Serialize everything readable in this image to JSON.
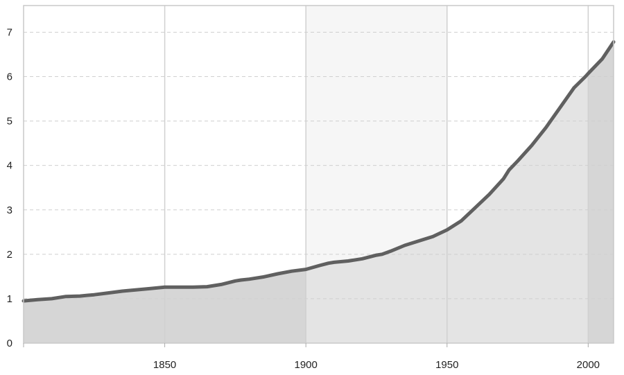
{
  "chart_data": {
    "type": "area",
    "title": "",
    "xlabel": "",
    "ylabel": "",
    "xlim": [
      1800,
      2009
    ],
    "ylim": [
      0,
      7.6
    ],
    "grid": true,
    "x_ticks": [
      1850,
      1900,
      1950,
      2000
    ],
    "x_tick_labels": [
      "1850",
      "1900",
      "1950",
      "2000"
    ],
    "y_ticks": [
      0,
      1,
      2,
      3,
      4,
      5,
      6,
      7
    ],
    "y_tick_labels": [
      "0",
      "1",
      "2",
      "3",
      "4",
      "5",
      "6",
      "7"
    ],
    "shaded_periods": [
      {
        "start": 1800,
        "end": 1900,
        "fill": "#d6d6d6",
        "background": "#ffffff"
      },
      {
        "start": 1900,
        "end": 1950,
        "fill": "#e4e4e4",
        "background": "#f6f6f6"
      },
      {
        "start": 1950,
        "end": 2000,
        "fill": "#e4e4e4",
        "background": "#ffffff"
      },
      {
        "start": 2000,
        "end": 2009,
        "fill": "#d6d6d6",
        "background": "#ffffff"
      }
    ],
    "series": [
      {
        "x": [
          1800,
          1805,
          1810,
          1815,
          1820,
          1825,
          1830,
          1835,
          1840,
          1845,
          1850,
          1855,
          1860,
          1865,
          1870,
          1875,
          1877,
          1880,
          1885,
          1890,
          1895,
          1900,
          1905,
          1908,
          1910,
          1915,
          1920,
          1925,
          1927,
          1930,
          1935,
          1940,
          1945,
          1950,
          1955,
          1960,
          1965,
          1970,
          1972,
          1975,
          1980,
          1985,
          1990,
          1995,
          1999,
          2000,
          2005,
          2009
        ],
        "y": [
          0.95,
          0.98,
          1.0,
          1.05,
          1.06,
          1.09,
          1.13,
          1.17,
          1.2,
          1.23,
          1.26,
          1.26,
          1.26,
          1.27,
          1.32,
          1.4,
          1.42,
          1.44,
          1.49,
          1.56,
          1.62,
          1.66,
          1.75,
          1.8,
          1.82,
          1.85,
          1.9,
          1.98,
          2.0,
          2.07,
          2.2,
          2.3,
          2.4,
          2.55,
          2.75,
          3.05,
          3.35,
          3.7,
          3.9,
          4.1,
          4.45,
          4.85,
          5.3,
          5.75,
          6.0,
          6.07,
          6.4,
          6.78
        ]
      }
    ],
    "colors": {
      "line": "#606060",
      "grid_major": "#d0d0d0",
      "grid_minor": "#cfcfcf",
      "axis": "#c8c8c8",
      "tick_text": "#222222"
    }
  }
}
